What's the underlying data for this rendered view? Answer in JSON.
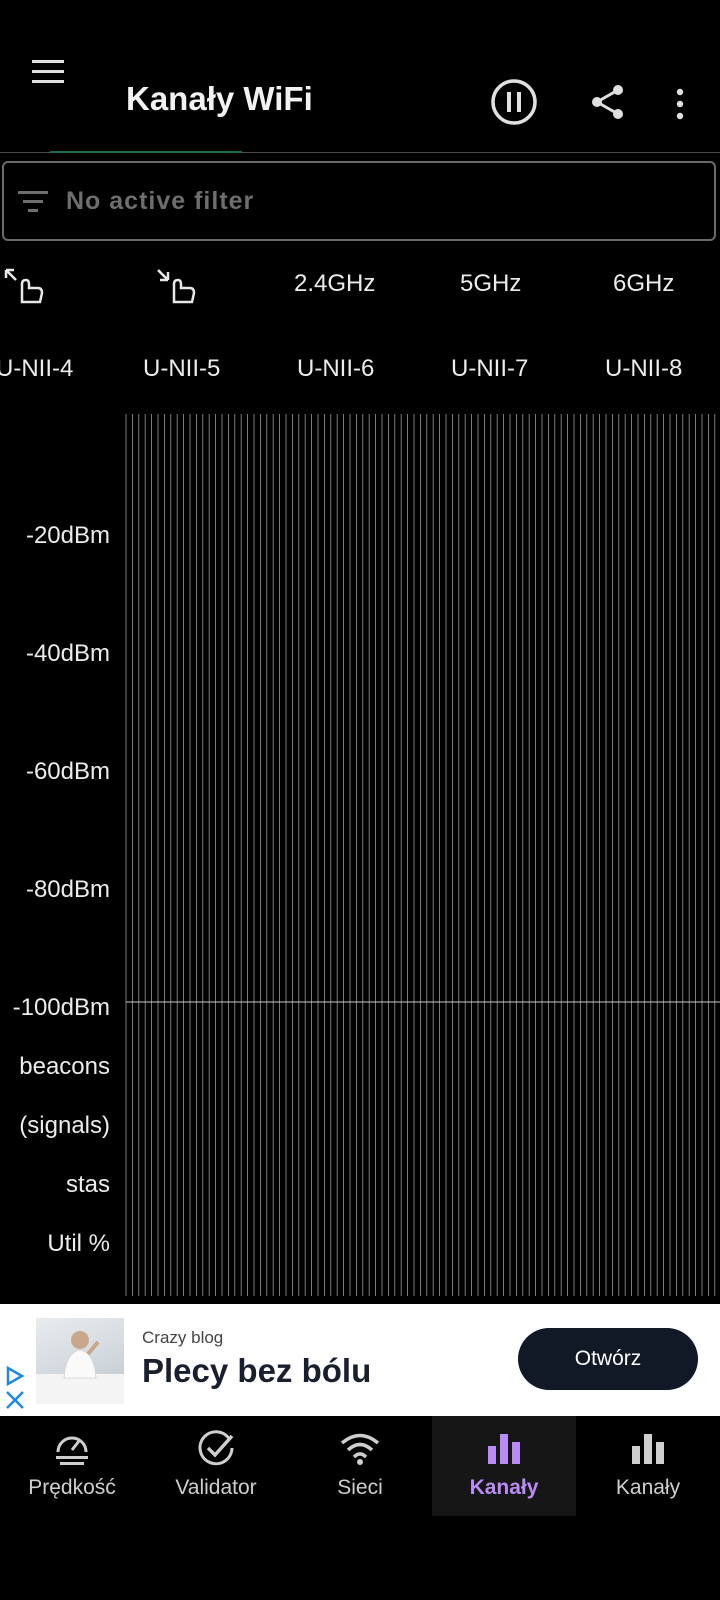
{
  "app": {
    "title": "Kanały WiFi"
  },
  "filter": {
    "placeholder": "No active filter"
  },
  "bands": {
    "b24": "2.4GHz",
    "b5": "5GHz",
    "b6": "6GHz"
  },
  "unii": [
    "U-NII-4",
    "U-NII-5",
    "U-NII-6",
    "U-NII-7",
    "U-NII-8"
  ],
  "chart": {
    "y_labels": [
      "-20dBm",
      "-40dBm",
      "-60dBm",
      "-80dBm",
      "-100dBm"
    ],
    "row_labels": [
      "beacons",
      "(signals)",
      "stas",
      "Util %"
    ]
  },
  "chart_data": {
    "type": "bar",
    "title": "",
    "xlabel": "",
    "ylabel": "",
    "y_ticks": [
      "-20dBm",
      "-40dBm",
      "-60dBm",
      "-80dBm",
      "-100dBm"
    ],
    "ylim": [
      -110,
      -10
    ],
    "series": []
  },
  "ad": {
    "source": "Crazy blog",
    "title": "Plecy bez bólu",
    "cta": "Otwórz"
  },
  "nav": {
    "items": [
      {
        "label": "Prędkość",
        "icon": "speedometer-icon"
      },
      {
        "label": "Validator",
        "icon": "check-circle-icon"
      },
      {
        "label": "Sieci",
        "icon": "wifi-icon"
      },
      {
        "label": "Kanały",
        "icon": "bar-chart-icon"
      },
      {
        "label": "Kanały",
        "icon": "bar-chart-icon"
      }
    ],
    "active_index": 3
  },
  "colors": {
    "accent": "#b98cf5",
    "appbar_accent": "#1f6b49",
    "background": "#000000"
  }
}
